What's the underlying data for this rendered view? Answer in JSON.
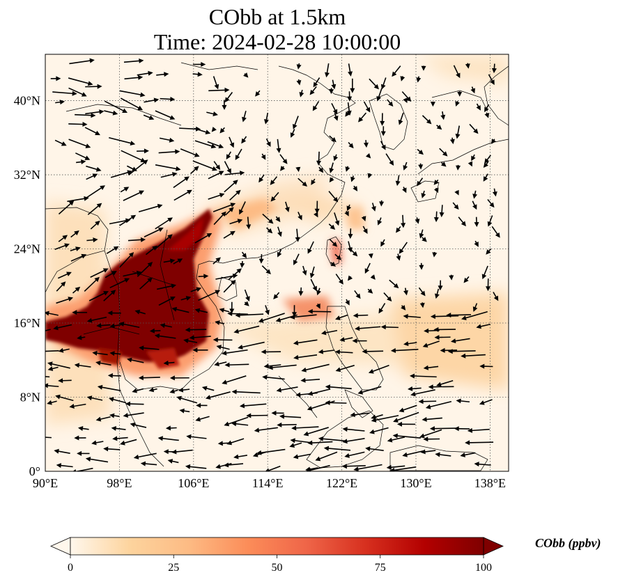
{
  "title": {
    "line1": "CObb at 1.5km",
    "line2": "Time: 2024-02-28 10:00:00"
  },
  "map": {
    "extent": {
      "lon": [
        90,
        140
      ],
      "lat": [
        0,
        45
      ]
    },
    "lon_ticks": [
      {
        "value": 90,
        "label": "90°E"
      },
      {
        "value": 98,
        "label": "98°E"
      },
      {
        "value": 106,
        "label": "106°E"
      },
      {
        "value": 114,
        "label": "114°E"
      },
      {
        "value": 122,
        "label": "122°E"
      },
      {
        "value": 130,
        "label": "130°E"
      },
      {
        "value": 138,
        "label": "138°E"
      }
    ],
    "lat_ticks": [
      {
        "value": 0,
        "label": "0°"
      },
      {
        "value": 8,
        "label": "8°N"
      },
      {
        "value": 16,
        "label": "16°N"
      },
      {
        "value": 24,
        "label": "24°N"
      },
      {
        "value": 32,
        "label": "32°N"
      },
      {
        "value": 40,
        "label": "40°N"
      }
    ],
    "gridlines": true,
    "colormap": "OrRd"
  },
  "colorbar": {
    "label": "CObb (ppbv)",
    "min": 0,
    "max": 100,
    "ticks": [
      {
        "value": 0,
        "label": "0"
      },
      {
        "value": 25,
        "label": "25"
      },
      {
        "value": 50,
        "label": "50"
      },
      {
        "value": 75,
        "label": "75"
      },
      {
        "value": 100,
        "label": "100"
      }
    ],
    "extend": "both",
    "colors": [
      "#fff7ec",
      "#fdd49e",
      "#fdbb84",
      "#fc8d59",
      "#ef6548",
      "#d7301f",
      "#b30000",
      "#7f0000"
    ]
  }
}
